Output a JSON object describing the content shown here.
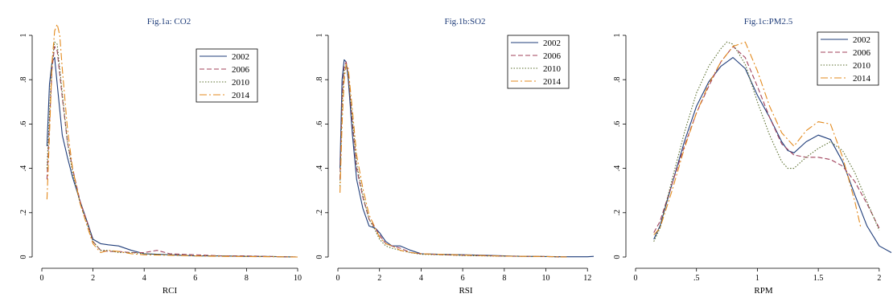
{
  "chart_data": [
    {
      "type": "line",
      "title": "Fig.1a: CO2",
      "xlabel": "RCI",
      "ylabel": "",
      "xlim": [
        0,
        10
      ],
      "ylim": [
        0,
        1.05
      ],
      "xticks": [
        0,
        2,
        4,
        6,
        8,
        10
      ],
      "xtick_labels": [
        "0",
        "2",
        "4",
        "6",
        "8",
        "10"
      ],
      "yticks": [
        0,
        0.2,
        0.4,
        0.6,
        0.8,
        1
      ],
      "ytick_labels": [
        "0",
        ".2",
        ".4",
        ".6",
        ".8",
        "1"
      ],
      "legend_position": "top-right",
      "series": [
        {
          "name": "2002",
          "color": "#1f3d7a",
          "dash": "",
          "x": [
            0.2,
            0.3,
            0.4,
            0.5,
            0.6,
            0.8,
            1.0,
            1.2,
            1.5,
            1.8,
            2.0,
            2.3,
            2.6,
            3.0,
            3.5,
            4.0,
            5.0,
            6.0,
            7.0,
            8.0,
            9.0,
            10.0
          ],
          "y": [
            0.5,
            0.78,
            0.88,
            0.9,
            0.78,
            0.55,
            0.45,
            0.36,
            0.25,
            0.15,
            0.08,
            0.06,
            0.055,
            0.05,
            0.03,
            0.015,
            0.01,
            0.005,
            0.005,
            0.003,
            0.002,
            0.0
          ]
        },
        {
          "name": "2006",
          "color": "#a0405a",
          "dash": "6,3",
          "x": [
            0.2,
            0.3,
            0.4,
            0.5,
            0.6,
            0.8,
            1.0,
            1.2,
            1.5,
            1.8,
            2.0,
            2.3,
            2.6,
            3.0,
            3.5,
            4.0,
            4.5,
            5.0,
            6.0,
            7.0,
            8.0,
            9.0,
            10.0
          ],
          "y": [
            0.35,
            0.6,
            0.85,
            0.95,
            0.93,
            0.72,
            0.52,
            0.4,
            0.25,
            0.15,
            0.07,
            0.03,
            0.025,
            0.025,
            0.02,
            0.02,
            0.03,
            0.015,
            0.01,
            0.005,
            0.005,
            0.002,
            0.0
          ]
        },
        {
          "name": "2010",
          "color": "#5a6e2e",
          "dash": "1.5,2",
          "x": [
            0.2,
            0.3,
            0.4,
            0.5,
            0.6,
            0.8,
            1.0,
            1.2,
            1.5,
            1.8,
            2.0,
            2.3,
            2.6,
            3.0,
            3.5,
            4.0,
            5.0,
            6.0,
            7.0,
            8.0,
            9.0,
            10.0
          ],
          "y": [
            0.4,
            0.65,
            0.88,
            0.97,
            0.96,
            0.74,
            0.52,
            0.38,
            0.24,
            0.14,
            0.07,
            0.03,
            0.03,
            0.02,
            0.02,
            0.015,
            0.01,
            0.005,
            0.005,
            0.003,
            0.002,
            0.0
          ]
        },
        {
          "name": "2014",
          "color": "#e38a1e",
          "dash": "9,3,2,3",
          "x": [
            0.2,
            0.3,
            0.4,
            0.5,
            0.6,
            0.7,
            0.8,
            1.0,
            1.2,
            1.5,
            1.8,
            2.0,
            2.3,
            2.6,
            3.0,
            3.5,
            4.0,
            5.0,
            6.0,
            7.0,
            8.0,
            9.0,
            10.0
          ],
          "y": [
            0.26,
            0.55,
            0.88,
            1.02,
            1.05,
            1.0,
            0.85,
            0.58,
            0.4,
            0.24,
            0.13,
            0.06,
            0.02,
            0.03,
            0.025,
            0.015,
            0.01,
            0.008,
            0.005,
            0.003,
            0.002,
            0.001,
            0.0
          ]
        }
      ]
    },
    {
      "type": "line",
      "title": "Fig.1b:SO2",
      "xlabel": "RSI",
      "ylabel": "",
      "xlim": [
        0,
        12.3
      ],
      "ylim": [
        0,
        1.0
      ],
      "xticks": [
        0,
        2,
        4,
        6,
        8,
        10,
        12
      ],
      "xtick_labels": [
        "0",
        "2",
        "4",
        "6",
        "8",
        "10",
        "12"
      ],
      "yticks": [
        0,
        0.2,
        0.4,
        0.6,
        0.8,
        1
      ],
      "ytick_labels": [
        "0",
        ".2",
        ".4",
        ".6",
        ".8",
        "1"
      ],
      "legend_position": "top-right",
      "series": [
        {
          "name": "2002",
          "color": "#1f3d7a",
          "dash": "",
          "x": [
            0.1,
            0.2,
            0.3,
            0.4,
            0.5,
            0.7,
            0.9,
            1.2,
            1.5,
            1.8,
            2.0,
            2.3,
            2.6,
            3.0,
            3.5,
            4.0,
            5.0,
            6.0,
            7.0,
            8.0,
            9.0,
            10.0,
            11.0,
            12.0,
            12.3
          ],
          "y": [
            0.4,
            0.8,
            0.89,
            0.88,
            0.8,
            0.55,
            0.35,
            0.22,
            0.14,
            0.13,
            0.11,
            0.07,
            0.05,
            0.05,
            0.03,
            0.015,
            0.012,
            0.01,
            0.008,
            0.005,
            0.003,
            0.002,
            0.001,
            0.001,
            0.003
          ]
        },
        {
          "name": "2006",
          "color": "#a0405a",
          "dash": "6,3",
          "x": [
            0.1,
            0.2,
            0.3,
            0.4,
            0.5,
            0.7,
            0.9,
            1.2,
            1.5,
            1.8,
            2.0,
            2.3,
            2.6,
            3.0,
            3.5,
            4.0,
            5.0,
            6.0,
            7.0,
            8.0,
            9.0,
            10.0,
            11.0
          ],
          "y": [
            0.35,
            0.72,
            0.86,
            0.88,
            0.82,
            0.6,
            0.4,
            0.27,
            0.17,
            0.13,
            0.1,
            0.06,
            0.05,
            0.04,
            0.02,
            0.015,
            0.01,
            0.008,
            0.006,
            0.004,
            0.003,
            0.002,
            0.0
          ]
        },
        {
          "name": "2010",
          "color": "#5a6e2e",
          "dash": "1.5,2",
          "x": [
            0.1,
            0.2,
            0.3,
            0.4,
            0.5,
            0.7,
            0.9,
            1.2,
            1.5,
            1.8,
            2.0,
            2.3,
            2.6,
            3.0,
            3.5,
            4.0,
            5.0,
            6.0,
            7.0,
            8.0,
            9.0,
            10.0,
            11.0
          ],
          "y": [
            0.32,
            0.68,
            0.84,
            0.87,
            0.82,
            0.62,
            0.42,
            0.28,
            0.17,
            0.12,
            0.08,
            0.05,
            0.04,
            0.03,
            0.02,
            0.012,
            0.01,
            0.007,
            0.005,
            0.004,
            0.003,
            0.002,
            0.0
          ]
        },
        {
          "name": "2014",
          "color": "#e38a1e",
          "dash": "9,3,2,3",
          "x": [
            0.1,
            0.2,
            0.3,
            0.4,
            0.5,
            0.7,
            0.9,
            1.2,
            1.5,
            1.8,
            2.0,
            2.3,
            2.6,
            3.0,
            3.5,
            4.0,
            5.0,
            6.0,
            7.0,
            8.0,
            9.0,
            10.0,
            11.0
          ],
          "y": [
            0.29,
            0.6,
            0.8,
            0.87,
            0.85,
            0.66,
            0.46,
            0.31,
            0.19,
            0.13,
            0.09,
            0.06,
            0.05,
            0.03,
            0.02,
            0.015,
            0.012,
            0.009,
            0.006,
            0.004,
            0.003,
            0.002,
            0.0
          ]
        }
      ]
    },
    {
      "type": "line",
      "title": "Fig.1c:PM2.5",
      "xlabel": "RPM",
      "ylabel": "",
      "xlim": [
        0,
        2.1
      ],
      "ylim": [
        0,
        1.0
      ],
      "xticks": [
        0,
        0.5,
        1,
        1.5,
        2
      ],
      "xtick_labels": [
        "0",
        ".5",
        "1",
        "1.5",
        "2"
      ],
      "yticks": [
        0,
        0.2,
        0.4,
        0.6,
        0.8,
        1
      ],
      "ytick_labels": [
        "0",
        ".2",
        ".4",
        ".6",
        ".8",
        "1"
      ],
      "legend_position": "top-right",
      "series": [
        {
          "name": "2002",
          "color": "#1f3d7a",
          "dash": "",
          "x": [
            0.15,
            0.2,
            0.3,
            0.4,
            0.5,
            0.6,
            0.7,
            0.8,
            0.9,
            1.0,
            1.1,
            1.2,
            1.25,
            1.3,
            1.4,
            1.5,
            1.6,
            1.7,
            1.8,
            1.9,
            2.0,
            2.1
          ],
          "y": [
            0.08,
            0.14,
            0.33,
            0.52,
            0.68,
            0.79,
            0.86,
            0.9,
            0.85,
            0.73,
            0.63,
            0.52,
            0.48,
            0.47,
            0.52,
            0.55,
            0.53,
            0.43,
            0.28,
            0.14,
            0.05,
            0.02
          ]
        },
        {
          "name": "2006",
          "color": "#a0405a",
          "dash": "6,3",
          "x": [
            0.15,
            0.2,
            0.3,
            0.4,
            0.5,
            0.6,
            0.7,
            0.8,
            0.9,
            1.0,
            1.1,
            1.2,
            1.3,
            1.4,
            1.5,
            1.6,
            1.7,
            1.8,
            1.9,
            2.0
          ],
          "y": [
            0.11,
            0.16,
            0.33,
            0.5,
            0.65,
            0.77,
            0.88,
            0.95,
            0.9,
            0.77,
            0.63,
            0.51,
            0.46,
            0.45,
            0.45,
            0.44,
            0.41,
            0.34,
            0.24,
            0.13
          ]
        },
        {
          "name": "2010",
          "color": "#5a6e2e",
          "dash": "1.5,2",
          "x": [
            0.15,
            0.2,
            0.3,
            0.4,
            0.5,
            0.6,
            0.7,
            0.75,
            0.8,
            0.9,
            1.0,
            1.1,
            1.2,
            1.25,
            1.3,
            1.4,
            1.5,
            1.6,
            1.7,
            1.8,
            1.9,
            2.0
          ],
          "y": [
            0.07,
            0.13,
            0.35,
            0.56,
            0.74,
            0.86,
            0.94,
            0.97,
            0.96,
            0.87,
            0.7,
            0.55,
            0.43,
            0.4,
            0.4,
            0.45,
            0.49,
            0.52,
            0.48,
            0.38,
            0.25,
            0.12
          ]
        },
        {
          "name": "2014",
          "color": "#e38a1e",
          "dash": "9,3,2,3",
          "x": [
            0.15,
            0.2,
            0.3,
            0.4,
            0.5,
            0.6,
            0.7,
            0.8,
            0.9,
            1.0,
            1.1,
            1.2,
            1.3,
            1.4,
            1.5,
            1.6,
            1.7,
            1.8,
            1.85
          ],
          "y": [
            0.1,
            0.13,
            0.3,
            0.49,
            0.65,
            0.78,
            0.88,
            0.95,
            0.97,
            0.84,
            0.68,
            0.56,
            0.5,
            0.57,
            0.61,
            0.6,
            0.45,
            0.25,
            0.13
          ]
        }
      ]
    }
  ]
}
